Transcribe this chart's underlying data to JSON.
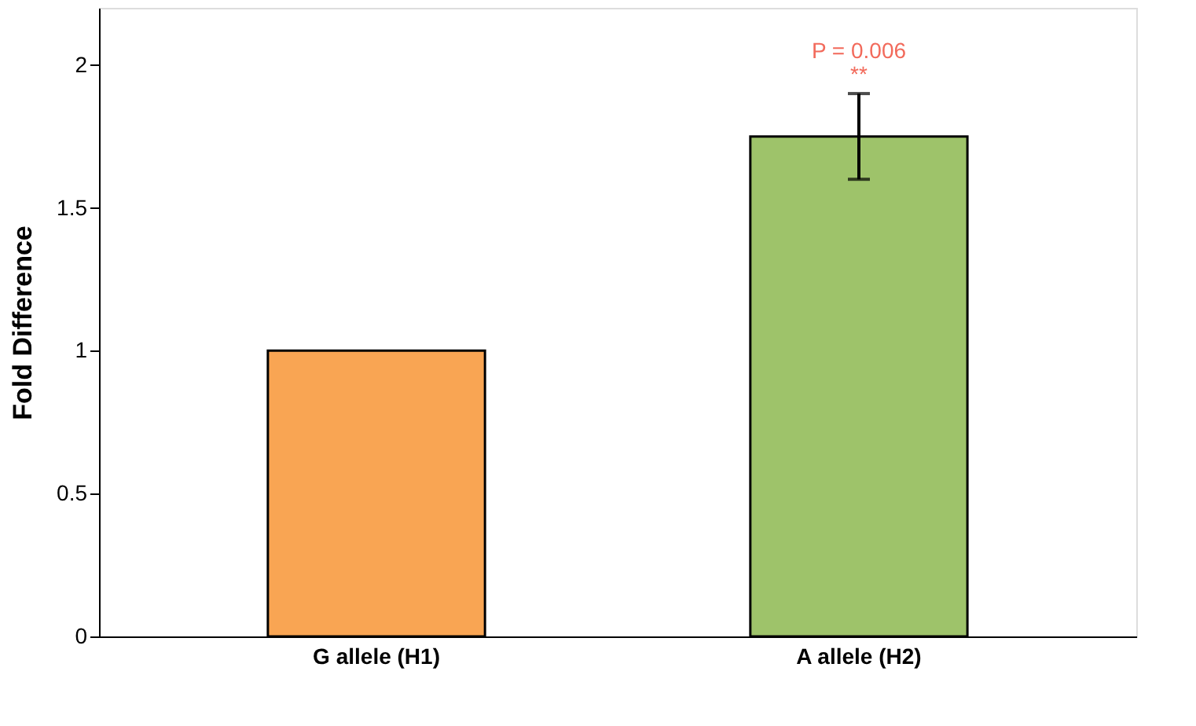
{
  "chart_data": {
    "type": "bar",
    "ylabel": "Fold Difference",
    "categories": [
      "G allele (H1)",
      "A allele (H2)"
    ],
    "values": [
      1,
      1.75
    ],
    "colors": [
      "#f9a553",
      "#9ec36a"
    ],
    "errors": [
      null,
      0.15
    ],
    "ylim": [
      0,
      2.2
    ],
    "yticks": [
      0,
      0.5,
      1,
      1.5,
      2
    ],
    "grid": false,
    "annotations": [
      "P = 0.006",
      "**"
    ]
  }
}
